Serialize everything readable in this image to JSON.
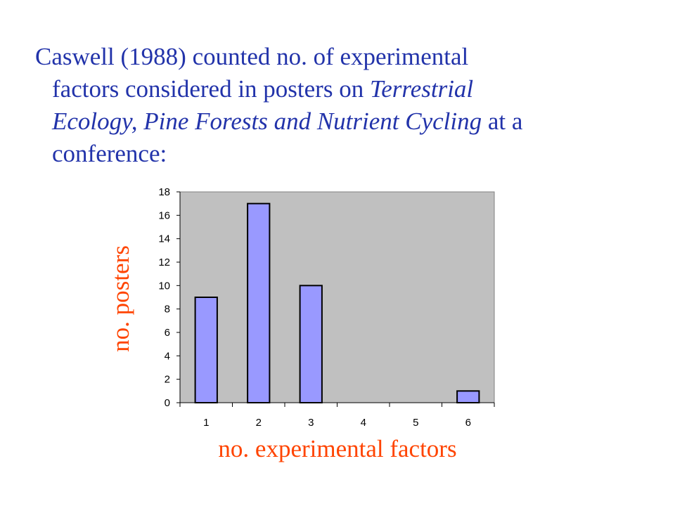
{
  "intro": {
    "line1": "Caswell (1988) counted no. of experimental",
    "line2_a": "factors considered in posters on ",
    "line2_b": "Terrestrial",
    "line3_a": "Ecology, Pine Forests and Nutrient Cycling",
    "line3_b": " at a",
    "line4": "conference:"
  },
  "colors": {
    "text": "#2233aa",
    "axis_title": "#ff4400",
    "plot_bg": "#c0c0c0",
    "bar_fill": "#9999ff",
    "bar_stroke": "#000000"
  },
  "chart_data": {
    "type": "bar",
    "categories": [
      "1",
      "2",
      "3",
      "4",
      "5",
      "6"
    ],
    "values": [
      9,
      17,
      10,
      0,
      0,
      1
    ],
    "xlabel": "no. experimental factors",
    "ylabel": "no. posters",
    "ylim": [
      0,
      18
    ],
    "yticks": [
      "0",
      "2",
      "4",
      "6",
      "8",
      "10",
      "12",
      "14",
      "16",
      "18"
    ],
    "grid": false,
    "legend": "none"
  }
}
